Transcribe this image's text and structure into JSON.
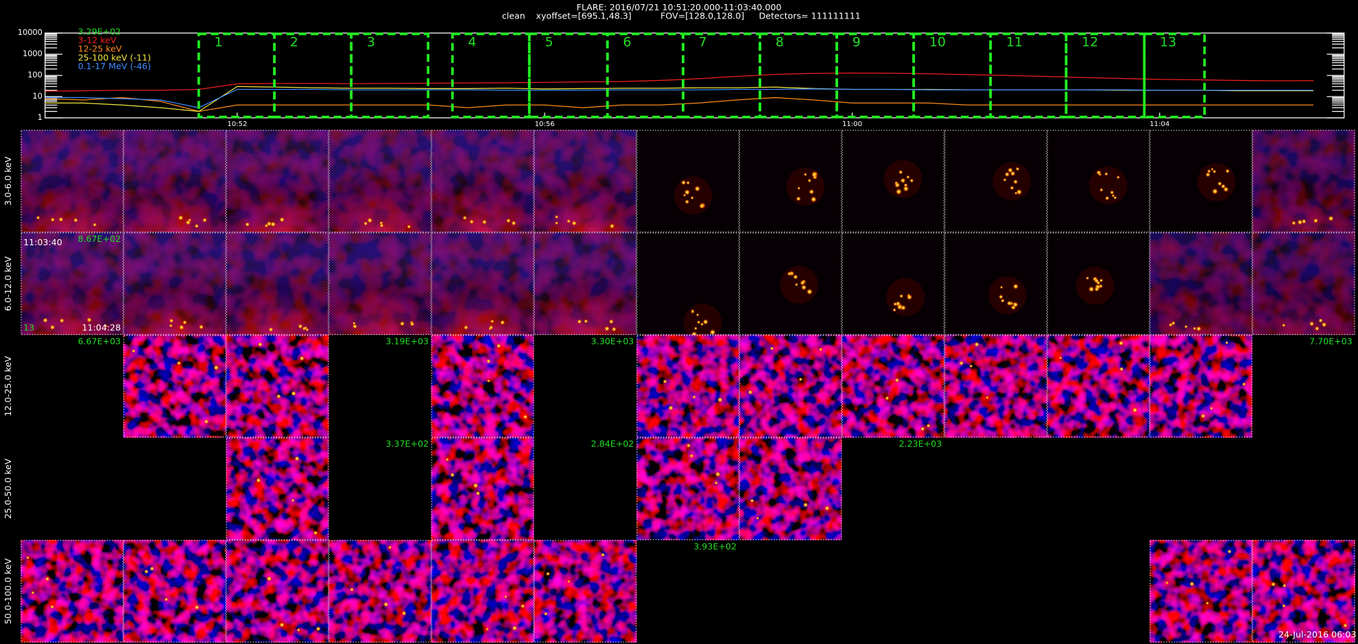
{
  "header": {
    "title": "FLARE: 2016/07/21 10:51:20.000-11:03:40.000",
    "info": [
      "clean",
      "xyoffset=[695.1,48.3]",
      "FOV=[128.0,128.0]",
      "Detectors= 111111111"
    ]
  },
  "chart_data": {
    "type": "line",
    "annotation": "3.29E+02",
    "x": [
      "10:49:30",
      "10:50:00",
      "10:50:30",
      "10:51:00",
      "10:51:30",
      "10:52:00",
      "10:52:30",
      "10:53:00",
      "10:53:30",
      "10:54:00",
      "10:54:30",
      "10:55:00",
      "10:55:30",
      "10:56:00",
      "10:56:30",
      "10:57:00",
      "10:57:30",
      "10:58:00",
      "10:58:30",
      "10:59:00",
      "10:59:30",
      "11:00:00",
      "11:00:30",
      "11:01:00",
      "11:01:30",
      "11:02:00",
      "11:02:30",
      "11:03:00",
      "11:03:30",
      "11:04:00",
      "11:04:30",
      "11:05:00",
      "11:05:30",
      "11:06:00"
    ],
    "xlim": [
      "10:49:30",
      "11:06:24"
    ],
    "xticks": [
      "10:52",
      "10:56",
      "11:00",
      "11:04"
    ],
    "ylim": [
      1,
      10000
    ],
    "yticks": [
      1,
      10,
      100,
      1000,
      10000
    ],
    "log_y": true,
    "series": [
      {
        "name": "3-12 keV",
        "color": "#ee2020",
        "values": [
          18,
          19,
          20,
          20,
          22,
          40,
          42,
          42,
          41,
          42,
          43,
          44,
          45,
          47,
          50,
          52,
          58,
          70,
          90,
          112,
          125,
          130,
          128,
          120,
          110,
          100,
          90,
          80,
          72,
          65,
          62,
          58,
          56,
          57
        ]
      },
      {
        "name": "12-25 keV",
        "color": "#ff8c1a",
        "values": [
          8,
          7,
          9,
          6,
          2,
          4,
          4,
          4,
          4,
          4,
          4,
          3,
          4,
          4,
          3,
          4,
          4,
          5,
          7,
          9,
          7,
          5,
          5,
          5,
          4,
          4,
          4,
          4,
          4,
          4,
          4,
          4,
          4,
          4
        ]
      },
      {
        "name": "25-100 keV (-11)",
        "color": "#f2e640",
        "values": [
          5,
          5,
          4,
          3,
          2,
          30,
          28,
          26,
          25,
          25,
          24,
          24,
          25,
          23,
          24,
          25,
          25,
          26,
          26,
          28,
          24,
          22,
          22,
          22,
          21,
          21,
          21,
          21,
          20,
          20,
          20,
          19,
          19,
          19
        ]
      },
      {
        "name": "0.1-17 MeV (-46)",
        "color": "#3d8cff",
        "values": [
          9,
          9,
          8,
          7,
          3,
          22,
          22,
          22,
          21,
          21,
          21,
          21,
          20,
          20,
          20,
          21,
          21,
          21,
          22,
          22,
          23,
          22,
          22,
          21,
          21,
          21,
          21,
          21,
          21,
          20,
          20,
          20,
          20,
          20
        ]
      }
    ],
    "intervals": [
      {
        "label": "1",
        "start": "10:51:30",
        "end": "10:52:29"
      },
      {
        "label": "2",
        "start": "10:52:29",
        "end": "10:53:29"
      },
      {
        "label": "3",
        "start": "10:53:29",
        "end": "10:54:29"
      },
      {
        "label": "4",
        "start": "10:54:48",
        "end": "10:55:48"
      },
      {
        "label": "5",
        "start": "10:55:48",
        "end": "10:56:49"
      },
      {
        "label": "6",
        "start": "10:56:49",
        "end": "10:57:48"
      },
      {
        "label": "7",
        "start": "10:57:48",
        "end": "10:58:48"
      },
      {
        "label": "8",
        "start": "10:58:48",
        "end": "10:59:48"
      },
      {
        "label": "9",
        "start": "10:59:48",
        "end": "11:00:48"
      },
      {
        "label": "10",
        "start": "11:00:48",
        "end": "11:01:48"
      },
      {
        "label": "11",
        "start": "11:01:48",
        "end": "11:02:47"
      },
      {
        "label": "12",
        "start": "11:02:47",
        "end": "11:03:48"
      },
      {
        "label": "13",
        "start": "11:03:48",
        "end": "11:04:35"
      }
    ]
  },
  "image_grid": {
    "rows": [
      {
        "label": "3.0-6.0 keV",
        "cells": [
          true,
          true,
          true,
          true,
          true,
          true,
          true,
          true,
          true,
          true,
          true,
          true,
          true
        ]
      },
      {
        "label": "6.0-12.0 keV",
        "cells": [
          true,
          true,
          true,
          true,
          true,
          true,
          true,
          true,
          true,
          true,
          true,
          true,
          true
        ]
      },
      {
        "label": "12.0-25.0 keV",
        "cells": [
          "6.67E+03",
          true,
          true,
          "3.19E+03",
          true,
          "3.30E+03",
          true,
          true,
          true,
          true,
          true,
          true,
          "7.70E+03"
        ]
      },
      {
        "label": "25.0-50.0 keV",
        "cells": [
          null,
          null,
          true,
          "3.37E+02",
          true,
          "2.84E+02",
          true,
          true,
          "2.23E+03",
          null,
          null,
          null,
          null
        ]
      },
      {
        "label": "50.0-100.0 keV",
        "cells": [
          true,
          true,
          true,
          true,
          true,
          true,
          "3.93E+02",
          null,
          null,
          null,
          null,
          true,
          true
        ]
      }
    ],
    "overlay": {
      "top_left": "11:03:40",
      "top_right": "8.67E+02",
      "bottom_left": "13",
      "bottom_right": "11:04:28"
    }
  },
  "footer": "24-Jul-2016 06:03"
}
